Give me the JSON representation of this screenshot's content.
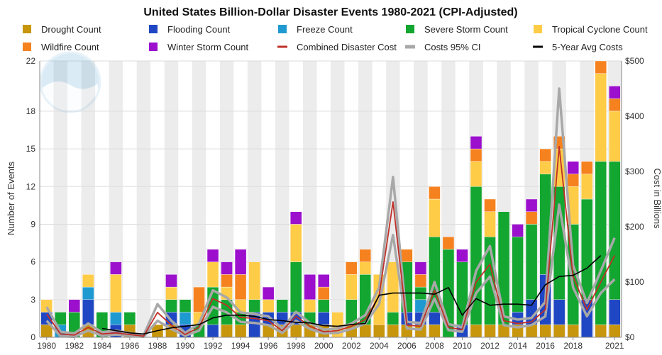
{
  "chart_data": {
    "type": "bar",
    "title": "United States Billion-Dollar Disaster Events 1980-2021 (CPI-Adjusted)",
    "ylabel": "Number of Events",
    "y2label": "Cost in Billions",
    "ylim": [
      0,
      22
    ],
    "y2lim": [
      0,
      500
    ],
    "left_ticks": [
      "0",
      "3",
      "6",
      "9",
      "12",
      "15",
      "18",
      "22"
    ],
    "left_tick_values": [
      0,
      3,
      6,
      9,
      12,
      15,
      18,
      22
    ],
    "right_ticks": [
      "$0",
      "$100",
      "$200",
      "$300",
      "$400",
      "$500"
    ],
    "right_tick_values": [
      0,
      100,
      200,
      300,
      400,
      500
    ],
    "x_tick_labels": [
      "1980",
      "1982",
      "1984",
      "1986",
      "1988",
      "1990",
      "1992",
      "1994",
      "1996",
      "1998",
      "2000",
      "2002",
      "2004",
      "2006",
      "2008",
      "2010",
      "2012",
      "2014",
      "2016",
      "2018",
      "2021"
    ],
    "x_tick_years": [
      1980,
      1982,
      1984,
      1986,
      1988,
      1990,
      1992,
      1994,
      1996,
      1998,
      2000,
      2002,
      2004,
      2006,
      2008,
      2010,
      2012,
      2014,
      2016,
      2018,
      2021
    ],
    "years": [
      1980,
      1981,
      1982,
      1983,
      1984,
      1985,
      1986,
      1987,
      1988,
      1989,
      1990,
      1991,
      1992,
      1993,
      1994,
      1995,
      1996,
      1997,
      1998,
      1999,
      2000,
      2001,
      2002,
      2003,
      2004,
      2005,
      2006,
      2007,
      2008,
      2009,
      2010,
      2011,
      2012,
      2013,
      2014,
      2015,
      2016,
      2017,
      2018,
      2019,
      2020,
      2021
    ],
    "grid": true,
    "legend_position": "top",
    "series": [
      {
        "name": "Drought Count",
        "color": "#c8960c",
        "values": [
          1,
          0,
          0,
          1,
          0,
          0,
          1,
          0,
          1,
          1,
          0,
          0,
          0,
          1,
          1,
          0,
          1,
          1,
          1,
          1,
          1,
          0,
          1,
          1,
          1,
          1,
          1,
          1,
          1,
          0,
          0,
          1,
          1,
          1,
          1,
          1,
          1,
          1,
          1,
          0,
          1,
          1
        ]
      },
      {
        "name": "Flooding Count",
        "color": "#1f47c4",
        "values": [
          1,
          0,
          0,
          2,
          0,
          1,
          0,
          0,
          0,
          1,
          1,
          0,
          1,
          0,
          0,
          2,
          1,
          1,
          1,
          0,
          1,
          0,
          0,
          0,
          0,
          0,
          1,
          1,
          1,
          0,
          1,
          0,
          0,
          0,
          1,
          2,
          4,
          2,
          0,
          3,
          0,
          2
        ]
      },
      {
        "name": "Freeze Count",
        "color": "#1f9ad1",
        "values": [
          0,
          1,
          0,
          1,
          0,
          1,
          0,
          0,
          0,
          0,
          1,
          0,
          0,
          0,
          0,
          0,
          0,
          0,
          0,
          0,
          0,
          0,
          0,
          0,
          0,
          0,
          0,
          1,
          0,
          0,
          0,
          0,
          0,
          0,
          0,
          0,
          0,
          0,
          0,
          0,
          0,
          0
        ]
      },
      {
        "name": "Severe Storm Count",
        "color": "#13a630",
        "values": [
          0,
          1,
          2,
          0,
          2,
          0,
          1,
          0,
          0,
          1,
          1,
          1,
          3,
          2,
          1,
          1,
          0,
          1,
          4,
          1,
          1,
          0,
          2,
          4,
          0,
          1,
          4,
          1,
          6,
          7,
          5,
          11,
          7,
          9,
          6,
          6,
          8,
          9,
          8,
          8,
          13,
          11
        ]
      },
      {
        "name": "Tropical Cyclone Count",
        "color": "#ffcc47",
        "values": [
          1,
          0,
          0,
          1,
          0,
          3,
          0,
          0,
          0,
          1,
          0,
          1,
          2,
          1,
          1,
          3,
          1,
          0,
          3,
          1,
          0,
          2,
          2,
          1,
          4,
          4,
          0,
          0,
          3,
          0,
          0,
          2,
          2,
          0,
          0,
          0,
          1,
          3,
          3,
          2,
          7,
          4
        ]
      },
      {
        "name": "Wildfire Count",
        "color": "#f6821f",
        "values": [
          0,
          0,
          0,
          0,
          0,
          0,
          0,
          0,
          0,
          0,
          0,
          2,
          0,
          1,
          2,
          0,
          0,
          0,
          0,
          0,
          1,
          0,
          1,
          1,
          0,
          0,
          1,
          1,
          1,
          1,
          0,
          1,
          1,
          0,
          0,
          1,
          1,
          1,
          1,
          1,
          1,
          1
        ]
      },
      {
        "name": "Winter Storm Count",
        "color": "#9b0fcd",
        "values": [
          0,
          0,
          1,
          0,
          0,
          1,
          0,
          0,
          0,
          1,
          0,
          0,
          1,
          1,
          2,
          0,
          1,
          0,
          1,
          2,
          1,
          0,
          0,
          0,
          0,
          0,
          0,
          1,
          0,
          0,
          1,
          1,
          0,
          0,
          1,
          1,
          0,
          0,
          1,
          0,
          0,
          1
        ]
      }
    ],
    "lines": [
      {
        "name": "Combined Disaster Cost",
        "color": "#c0302a",
        "units": "billions",
        "values": [
          42,
          6,
          4,
          18,
          6,
          8,
          5,
          2,
          45,
          22,
          5,
          18,
          70,
          58,
          36,
          34,
          30,
          12,
          38,
          20,
          10,
          12,
          20,
          32,
          75,
          245,
          22,
          20,
          85,
          18,
          14,
          100,
          132,
          30,
          25,
          28,
          50,
          345,
          110,
          50,
          100,
          148
        ]
      },
      {
        "name": "Costs 95% CI",
        "color": "#a8a8a8",
        "units": "billions",
        "lower": [
          30,
          2,
          1,
          12,
          3,
          5,
          3,
          1,
          30,
          15,
          3,
          12,
          55,
          45,
          28,
          26,
          22,
          8,
          30,
          15,
          7,
          8,
          15,
          25,
          60,
          185,
          16,
          14,
          70,
          13,
          10,
          80,
          110,
          22,
          18,
          22,
          38,
          240,
          90,
          38,
          80,
          105
        ],
        "upper": [
          55,
          10,
          7,
          25,
          9,
          12,
          8,
          4,
          60,
          30,
          8,
          25,
          85,
          72,
          45,
          42,
          38,
          16,
          46,
          26,
          14,
          16,
          25,
          40,
          90,
          290,
          28,
          26,
          100,
          24,
          18,
          120,
          165,
          38,
          32,
          35,
          64,
          450,
          130,
          62,
          120,
          180
        ]
      },
      {
        "name": "5-Year Avg Costs",
        "color": "#000000",
        "units": "billions",
        "x_start": 1984,
        "values": [
          16,
          12,
          8,
          6,
          12,
          17,
          20,
          23,
          35,
          40,
          40,
          38,
          32,
          30,
          27,
          26,
          21,
          20,
          23,
          25,
          76,
          80,
          80,
          80,
          78,
          90,
          40,
          70,
          58,
          60,
          60,
          58,
          95,
          110,
          112,
          125,
          148
        ]
      }
    ]
  }
}
